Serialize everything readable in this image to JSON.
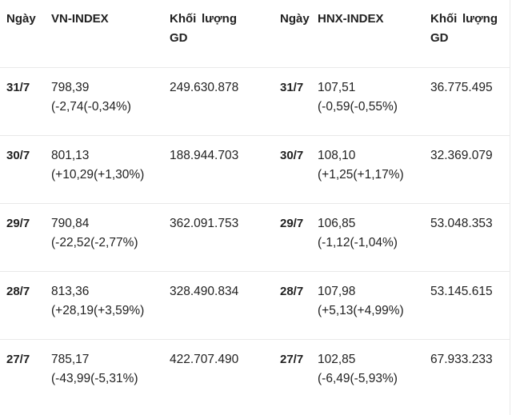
{
  "table": {
    "headers": {
      "date_left": "Ngày",
      "vn_index": "VN-INDEX",
      "volume_left": "Khối lượng GD",
      "date_right": "Ngày",
      "hnx_index": "HNX-INDEX",
      "volume_right": "Khối lượng GD"
    },
    "rows": [
      {
        "date": "31/7",
        "vn_value": "798,39",
        "vn_change": "(-2,74(-0,34%)",
        "vn_volume": "249.630.878",
        "hnx_value": "107,51",
        "hnx_change": "(-0,59(-0,55%)",
        "hnx_volume": "36.775.495"
      },
      {
        "date": "30/7",
        "vn_value": "801,13",
        "vn_change": "(+10,29(+1,30%)",
        "vn_volume": "188.944.703",
        "hnx_value": "108,10",
        "hnx_change": "(+1,25(+1,17%)",
        "hnx_volume": "32.369.079"
      },
      {
        "date": "29/7",
        "vn_value": "790,84",
        "vn_change": "(-22,52(-2,77%)",
        "vn_volume": "362.091.753",
        "hnx_value": "106,85",
        "hnx_change": "(-1,12(-1,04%)",
        "hnx_volume": "53.048.353"
      },
      {
        "date": "28/7",
        "vn_value": "813,36",
        "vn_change": "(+28,19(+3,59%)",
        "vn_volume": "328.490.834",
        "hnx_value": "107,98",
        "hnx_change": "(+5,13(+4,99%)",
        "hnx_volume": "53.145.615"
      },
      {
        "date": "27/7",
        "vn_value": "785,17",
        "vn_change": "(-43,99(-5,31%)",
        "vn_volume": "422.707.490",
        "hnx_value": "102,85",
        "hnx_change": "(-6,49(-5,93%)",
        "hnx_volume": "67.933.233"
      }
    ]
  },
  "colors": {
    "text_color": "#212121",
    "divider_color": "#e9e9e9",
    "background_color": "#ffffff"
  }
}
